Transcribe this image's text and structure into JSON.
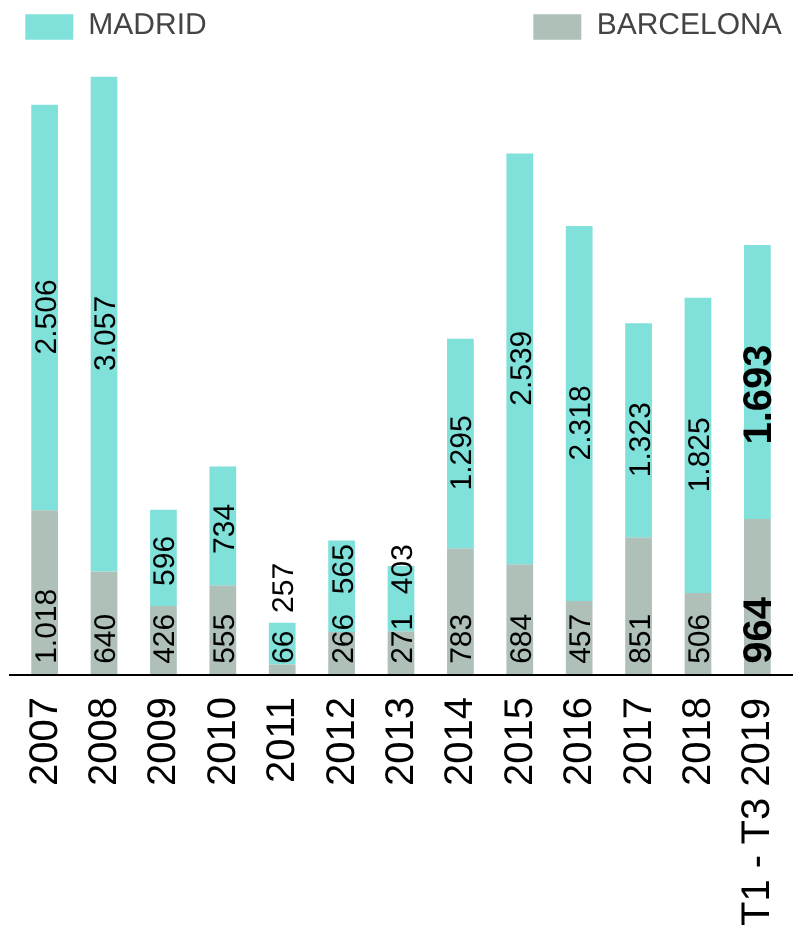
{
  "chart_data": {
    "type": "bar",
    "stacked": true,
    "legend": "top",
    "grid": false,
    "categories": [
      "2007",
      "2008",
      "2009",
      "2010",
      "2011",
      "2012",
      "2013",
      "2014",
      "2015",
      "2016",
      "2017",
      "2018",
      "T1 - T3 2019"
    ],
    "series": [
      {
        "name": "BARCELONA",
        "color": "#afc0b8",
        "values": [
          1018,
          640,
          426,
          555,
          66,
          266,
          271,
          783,
          684,
          457,
          851,
          506,
          964
        ],
        "value_labels": [
          "1.018",
          "640",
          "426",
          "555",
          "66",
          "266",
          "271",
          "783",
          "684",
          "457",
          "851",
          "506",
          "964"
        ]
      },
      {
        "name": "MADRID",
        "color": "#80e0da",
        "values": [
          2506,
          3057,
          596,
          734,
          257,
          565,
          403,
          1295,
          2539,
          2318,
          1323,
          1825,
          1693
        ],
        "value_labels": [
          "2.506",
          "3.057",
          "596",
          "734",
          "257",
          "565",
          "403",
          "1.295",
          "2.539",
          "2.318",
          "1.323",
          "1.825",
          "1.693"
        ]
      }
    ]
  }
}
